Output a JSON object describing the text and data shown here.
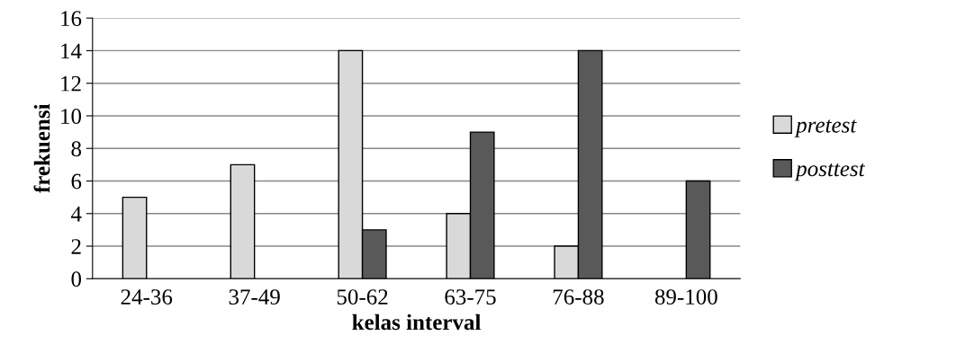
{
  "chart_data": {
    "type": "bar",
    "xlabel": "kelas interval",
    "ylabel": "frekuensi",
    "categories": [
      "24-36",
      "37-49",
      "50-62",
      "63-75",
      "76-88",
      "89-100"
    ],
    "series": [
      {
        "name": "pretest",
        "color": "#d9d9d9",
        "values": [
          5,
          7,
          14,
          4,
          2,
          0
        ]
      },
      {
        "name": "posttest",
        "color": "#595959",
        "values": [
          0,
          0,
          3,
          9,
          14,
          6
        ]
      }
    ],
    "ylim": [
      0,
      16
    ],
    "yticks": [
      0,
      2,
      4,
      6,
      8,
      10,
      12,
      14,
      16
    ],
    "grid": "y",
    "legend": "right"
  }
}
